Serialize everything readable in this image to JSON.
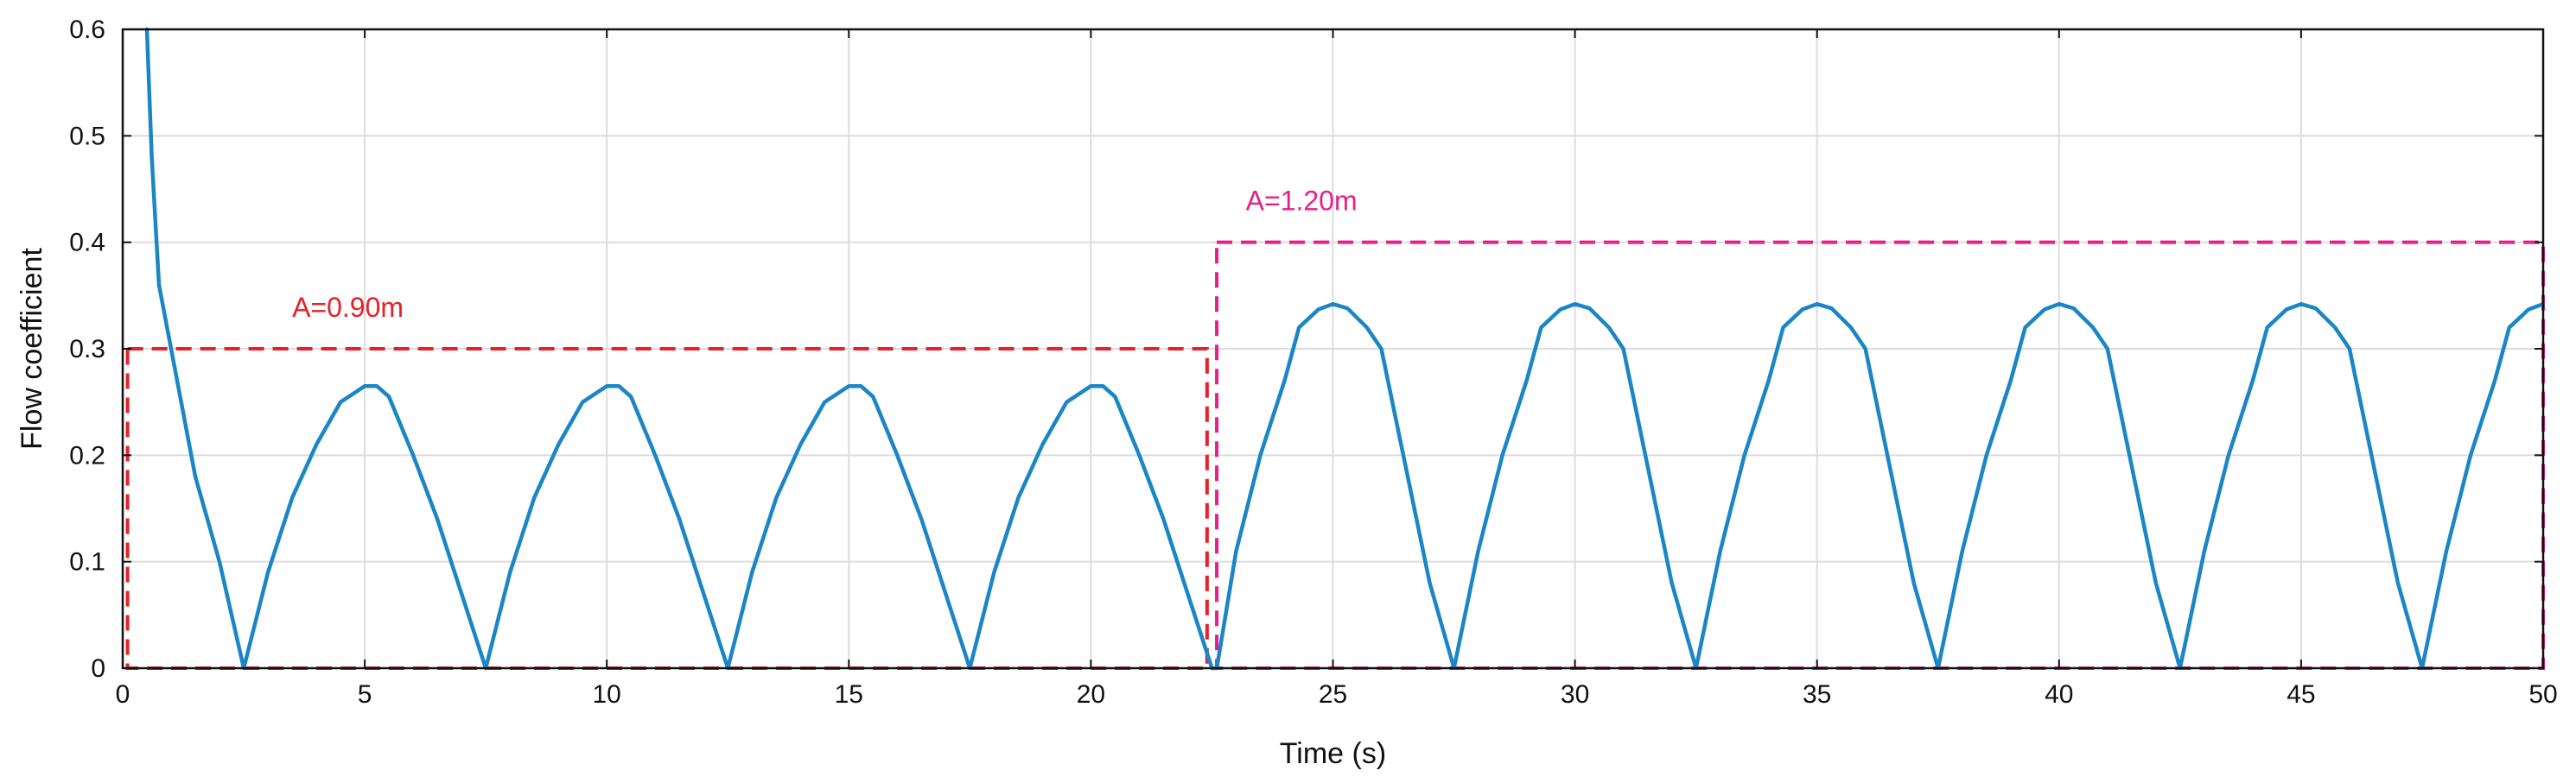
{
  "chart_data": {
    "type": "line",
    "title": "",
    "xlabel": "Time (s)",
    "ylabel": "Flow coefficient",
    "xlim": [
      0,
      50
    ],
    "ylim": [
      0,
      0.6
    ],
    "grid": true,
    "xticks": [
      0,
      5,
      10,
      15,
      20,
      25,
      30,
      35,
      40,
      45,
      50
    ],
    "yticks": [
      0,
      0.1,
      0.2,
      0.3,
      0.4,
      0.5,
      0.6
    ],
    "xtick_labels": [
      "0",
      "5",
      "10",
      "15",
      "20",
      "25",
      "30",
      "35",
      "40",
      "45",
      "50"
    ],
    "ytick_labels": [
      "0",
      "0.1",
      "0.2",
      "0.3",
      "0.4",
      "0.5",
      "0.6"
    ],
    "colors": {
      "flow": "#1b86c6",
      "box1": "#e8202a",
      "box2": "#e6208a",
      "grid": "#dcdcdc"
    },
    "series": [
      {
        "name": "Flow coefficient",
        "x": [
          0.5,
          0.6,
          0.75,
          1.0,
          1.5,
          2.0,
          2.5,
          3.0,
          3.5,
          4.0,
          4.5,
          5.0,
          5.25,
          5.5,
          6.0,
          6.5,
          7.0,
          7.5,
          8.0,
          8.5,
          9.0,
          9.5,
          10.0,
          10.25,
          10.5,
          11.0,
          11.5,
          12.0,
          12.5,
          13.0,
          13.5,
          14.0,
          14.5,
          15.0,
          15.25,
          15.5,
          16.0,
          16.5,
          17.0,
          17.5,
          18.0,
          18.5,
          19.0,
          19.5,
          20.0,
          20.25,
          20.5,
          21.0,
          21.5,
          22.0,
          22.5,
          22.6,
          23.0,
          23.5,
          24.0,
          24.3,
          24.7,
          25.0,
          25.3,
          25.7,
          26.0,
          26.5,
          27.0,
          27.5,
          28.0,
          28.5,
          29.0,
          29.3,
          29.7,
          30.0,
          30.3,
          30.7,
          31.0,
          31.5,
          32.0,
          32.5,
          33.0,
          33.5,
          34.0,
          34.3,
          34.7,
          35.0,
          35.3,
          35.7,
          36.0,
          36.5,
          37.0,
          37.5,
          38.0,
          38.5,
          39.0,
          39.3,
          39.7,
          40.0,
          40.3,
          40.7,
          41.0,
          41.5,
          42.0,
          42.5,
          43.0,
          43.5,
          44.0,
          44.3,
          44.7,
          45.0,
          45.3,
          45.7,
          46.0,
          46.5,
          47.0,
          47.5,
          48.0,
          48.5,
          49.0,
          49.3,
          49.7,
          50.0
        ],
        "values": [
          0.6,
          0.48,
          0.36,
          0.3,
          0.18,
          0.1,
          0.0,
          0.09,
          0.16,
          0.21,
          0.25,
          0.265,
          0.265,
          0.255,
          0.2,
          0.14,
          0.07,
          0.0,
          0.09,
          0.16,
          0.21,
          0.25,
          0.265,
          0.265,
          0.255,
          0.2,
          0.14,
          0.07,
          0.0,
          0.09,
          0.16,
          0.21,
          0.25,
          0.265,
          0.265,
          0.255,
          0.2,
          0.14,
          0.07,
          0.0,
          0.09,
          0.16,
          0.21,
          0.25,
          0.265,
          0.265,
          0.255,
          0.2,
          0.14,
          0.07,
          0.0,
          0.0,
          0.11,
          0.2,
          0.27,
          0.32,
          0.337,
          0.342,
          0.338,
          0.32,
          0.3,
          0.19,
          0.08,
          0.0,
          0.11,
          0.2,
          0.27,
          0.32,
          0.337,
          0.342,
          0.338,
          0.32,
          0.3,
          0.19,
          0.08,
          0.0,
          0.11,
          0.2,
          0.27,
          0.32,
          0.337,
          0.342,
          0.338,
          0.32,
          0.3,
          0.19,
          0.08,
          0.0,
          0.11,
          0.2,
          0.27,
          0.32,
          0.337,
          0.342,
          0.338,
          0.32,
          0.3,
          0.19,
          0.08,
          0.0,
          0.11,
          0.2,
          0.27,
          0.32,
          0.337,
          0.342,
          0.338,
          0.32,
          0.3,
          0.19,
          0.08,
          0.0,
          0.11,
          0.2,
          0.27,
          0.32,
          0.337,
          0.342
        ]
      }
    ],
    "regions": [
      {
        "name": "A=0.90m",
        "label": "A=0.90m",
        "x0": 0.1,
        "x1": 22.4,
        "y0": 0.0,
        "y1": 0.3,
        "label_x": 3.5,
        "label_y": 0.33,
        "color": "#e8202a"
      },
      {
        "name": "A=1.20m",
        "label": "A=1.20m",
        "x0": 22.6,
        "x1": 50.0,
        "y0": 0.0,
        "y1": 0.4,
        "label_x": 23.2,
        "label_y": 0.43,
        "color": "#e6208a"
      }
    ]
  }
}
